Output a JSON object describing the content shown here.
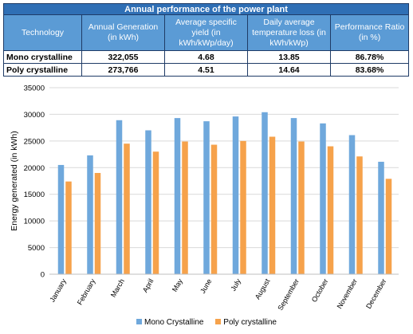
{
  "table": {
    "title": "Annual performance of the power plant",
    "headers": [
      "Technology",
      "Annual Generation (in kWh)",
      "Average specific yield (in kWh/kWp/day)",
      "Daily average temperature loss (in kWh/kWp)",
      "Performance Ratio (in %)"
    ],
    "rows": [
      [
        "Mono crystalline",
        "322,055",
        "4.68",
        "13.85",
        "86.78%"
      ],
      [
        "Poly crystalline",
        "273,766",
        "4.51",
        "14.64",
        "83.68%"
      ]
    ]
  },
  "chart_data": {
    "type": "bar",
    "title": "",
    "xlabel": "",
    "ylabel": "Energy generated (in kWh)",
    "ylim": [
      0,
      35000
    ],
    "yticks": [
      "0",
      "5000",
      "10000",
      "15000",
      "20000",
      "25000",
      "30000",
      "35000"
    ],
    "grid": "horizontal",
    "legend_position": "bottom",
    "categories": [
      "January",
      "February",
      "March",
      "April",
      "May",
      "June",
      "July",
      "August",
      "September",
      "October",
      "November",
      "December"
    ],
    "series": [
      {
        "name": "Mono Crystalline",
        "color": "#6fa8dc",
        "values": [
          20500,
          22300,
          28900,
          27000,
          29300,
          28700,
          29600,
          30400,
          29300,
          28300,
          26100,
          21100
        ]
      },
      {
        "name": "Poly crystalline",
        "color": "#f6a24b",
        "values": [
          17400,
          19000,
          24500,
          23000,
          24900,
          24300,
          25000,
          25800,
          24900,
          24000,
          22100,
          17900
        ]
      }
    ]
  }
}
